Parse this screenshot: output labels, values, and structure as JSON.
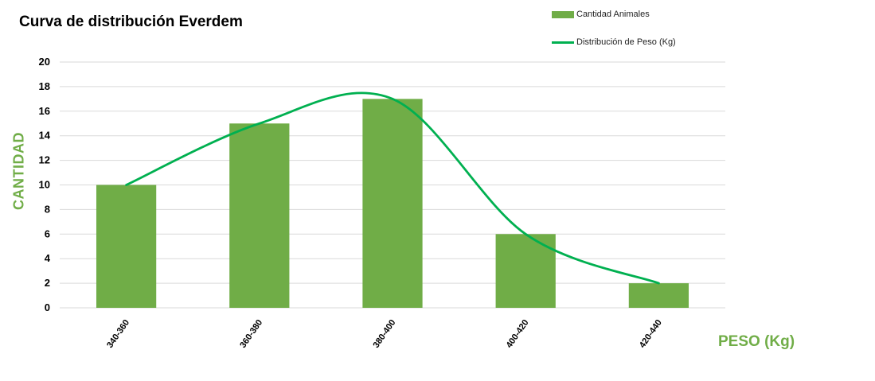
{
  "chart_data": {
    "type": "bar",
    "title": "Curva de distribución Everdem",
    "xlabel": "PESO (Kg)",
    "ylabel": "CANTIDAD",
    "categories": [
      "340-360",
      "360-380",
      "380-400",
      "400-420",
      "420-440"
    ],
    "series": [
      {
        "name": "Cantidad Animales",
        "type": "bar",
        "values": [
          10,
          15,
          17,
          6,
          2
        ]
      },
      {
        "name": "Distribución de Peso (Kg)",
        "type": "line",
        "smooth": true,
        "values": [
          10,
          15,
          17,
          6,
          2
        ]
      }
    ],
    "ylim": [
      0,
      20
    ],
    "yticks": [
      0,
      2,
      4,
      6,
      8,
      10,
      12,
      14,
      16,
      18,
      20
    ],
    "grid": true,
    "legend_position": "top-right"
  },
  "colors": {
    "bar": "#70AD47",
    "line": "#00B050",
    "axis_title": "#70AD47",
    "grid": "#D9D9D9"
  }
}
